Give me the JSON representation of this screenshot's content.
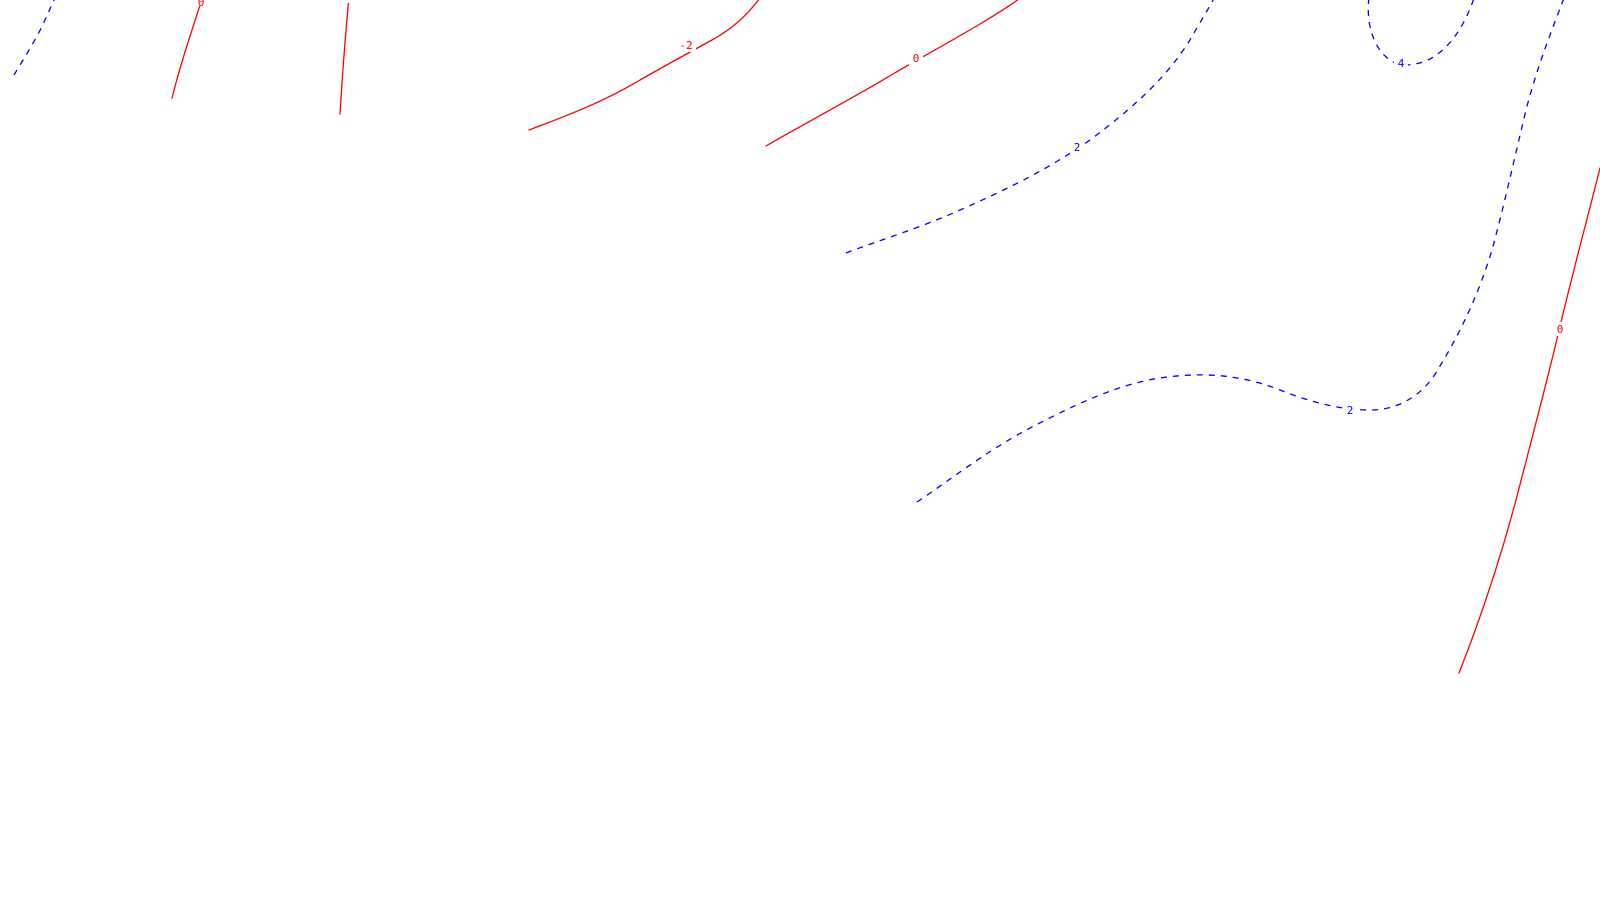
{
  "map": {
    "colors": {
      "background": "#ffffff",
      "negative_contour": "#ff0000",
      "positive_contour": "#0000ff"
    },
    "contours": [
      {
        "id": "c1",
        "level": "",
        "style": "dashed",
        "color": "#0000ff"
      },
      {
        "id": "c2",
        "level": "0",
        "style": "solid",
        "color": "#ff0000"
      },
      {
        "id": "c3",
        "level": "-",
        "style": "solid",
        "color": "#ff0000"
      },
      {
        "id": "c4",
        "level": "-2",
        "style": "solid",
        "color": "#ff0000"
      },
      {
        "id": "c5",
        "level": "0",
        "style": "solid",
        "color": "#ff0000"
      },
      {
        "id": "c6",
        "level": "2",
        "style": "dashed",
        "color": "#0000ff"
      },
      {
        "id": "c7",
        "level": "4",
        "style": "dashed",
        "color": "#0000ff"
      },
      {
        "id": "c8",
        "level": "2",
        "style": "dashed",
        "color": "#0000ff"
      },
      {
        "id": "c9",
        "level": "0",
        "style": "solid",
        "color": "#ff0000"
      }
    ]
  }
}
